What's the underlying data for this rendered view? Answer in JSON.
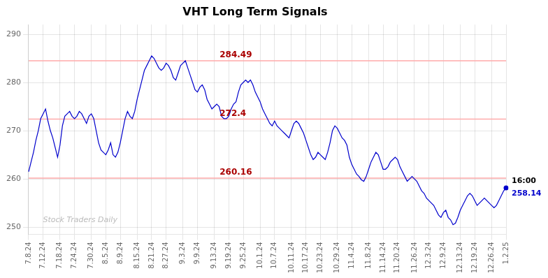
{
  "chart_data": {
    "type": "line",
    "title": "VHT Long Term Signals",
    "categories": [
      "7.8.24",
      null,
      null,
      null,
      null,
      null,
      "7.12.24",
      null,
      null,
      null,
      null,
      null,
      null,
      "7.18.24",
      null,
      null,
      null,
      null,
      null,
      "7.24.24",
      null,
      null,
      null,
      null,
      null,
      null,
      "7.30.24",
      null,
      null,
      null,
      null,
      null,
      "8.5.24",
      null,
      null,
      null,
      null,
      null,
      "8.9.24",
      null,
      null,
      null,
      null,
      null,
      null,
      "8.15.24",
      null,
      null,
      null,
      null,
      null,
      "8.21.24",
      null,
      null,
      null,
      null,
      null,
      "8.27.24",
      null,
      null,
      null,
      null,
      null,
      null,
      "9.3.24",
      null,
      null,
      null,
      null,
      null,
      "9.9.24",
      null,
      null,
      null,
      null,
      null,
      null,
      "9.13.24",
      null,
      null,
      null,
      null,
      null,
      "9.19.24",
      null,
      null,
      null,
      null,
      null,
      "9.25.24",
      null,
      null,
      null,
      null,
      null,
      null,
      "10.1.24",
      null,
      null,
      null,
      null,
      null,
      "10.7.24",
      null,
      null,
      null,
      null,
      null,
      null,
      "10.11.24",
      null,
      null,
      null,
      null,
      null,
      "10.17.24",
      null,
      null,
      null,
      null,
      null,
      "10.23.24",
      null,
      null,
      null,
      null,
      null,
      null,
      "10.29.24",
      null,
      null,
      null,
      null,
      null,
      "11.4.24",
      null,
      null,
      null,
      null,
      null,
      null,
      "11.8.24",
      null,
      null,
      null,
      null,
      null,
      "11.14.24",
      null,
      null,
      null,
      null,
      null,
      "11.20.24",
      null,
      null,
      null,
      null,
      null,
      null,
      "11.26.24",
      null,
      null,
      null,
      null,
      null,
      "12.3.24",
      null,
      null,
      null,
      null,
      null,
      "12.9.24",
      null,
      null,
      null,
      null,
      null,
      null,
      "12.13.24",
      null,
      null,
      null,
      null,
      null,
      "12.19.24",
      null,
      null,
      null,
      null,
      null,
      null,
      "12.26.24",
      null,
      null,
      null,
      null,
      null,
      "1.2.25"
    ],
    "values": [
      261.5,
      263.5,
      265.5,
      268.0,
      270.0,
      272.5,
      273.5,
      274.5,
      272.0,
      270.0,
      268.5,
      266.5,
      264.5,
      267.0,
      271.0,
      273.0,
      273.5,
      274.0,
      273.0,
      272.5,
      273.0,
      274.0,
      273.5,
      272.5,
      271.5,
      273.0,
      273.5,
      272.5,
      270.0,
      267.5,
      266.0,
      265.5,
      265.0,
      266.0,
      267.5,
      265.0,
      264.5,
      265.5,
      267.5,
      270.0,
      272.5,
      274.0,
      273.0,
      272.5,
      274.0,
      276.5,
      278.5,
      280.5,
      282.5,
      283.5,
      284.5,
      285.5,
      285.0,
      284.0,
      283.0,
      282.5,
      283.0,
      284.0,
      283.5,
      282.5,
      281.0,
      280.5,
      282.0,
      283.5,
      284.0,
      284.5,
      283.0,
      281.5,
      280.0,
      278.5,
      278.0,
      279.0,
      279.5,
      278.5,
      276.5,
      275.5,
      274.5,
      275.0,
      275.5,
      275.0,
      273.0,
      272.5,
      272.5,
      273.0,
      274.5,
      275.5,
      276.0,
      278.0,
      279.5,
      280.0,
      280.5,
      280.0,
      280.5,
      279.5,
      278.0,
      277.0,
      276.0,
      274.5,
      273.5,
      272.5,
      271.5,
      271.0,
      272.0,
      271.0,
      270.5,
      270.0,
      269.5,
      269.0,
      268.5,
      270.0,
      271.5,
      272.0,
      271.5,
      270.5,
      269.5,
      268.0,
      266.5,
      265.0,
      264.0,
      264.5,
      265.5,
      265.0,
      264.5,
      264.0,
      265.5,
      267.5,
      270.0,
      271.0,
      270.5,
      269.5,
      268.5,
      268.0,
      267.0,
      264.5,
      263.0,
      262.0,
      261.0,
      260.5,
      259.8,
      259.5,
      260.5,
      262.0,
      263.5,
      264.5,
      265.5,
      265.0,
      263.5,
      262.0,
      262.0,
      262.5,
      263.5,
      264.0,
      264.5,
      264.0,
      262.5,
      261.5,
      260.5,
      259.5,
      260.0,
      260.5,
      260.0,
      259.5,
      258.5,
      257.5,
      257.0,
      256.0,
      255.5,
      255.0,
      254.5,
      253.5,
      252.5,
      252.0,
      253.0,
      253.5,
      252.0,
      251.5,
      250.5,
      250.8,
      252.0,
      253.5,
      254.5,
      255.5,
      256.5,
      257.0,
      256.5,
      255.5,
      254.5,
      255.0,
      255.5,
      256.0,
      255.5,
      255.0,
      254.5,
      254.0,
      254.5,
      255.5,
      256.5,
      257.5,
      258.14
    ],
    "color": "#0000cc",
    "ylim": [
      248.5,
      292
    ],
    "yticks": [
      250,
      260,
      270,
      280,
      290
    ],
    "grid": true,
    "hlines": [
      {
        "y": 284.49,
        "color": "#ffaaaa"
      },
      {
        "y": 272.4,
        "color": "#ffaaaa"
      },
      {
        "y": 260.16,
        "color": "#ffaaaa"
      }
    ],
    "annotations": [
      {
        "text": "284.49",
        "y": 284.49,
        "color": "#aa0000"
      },
      {
        "text": "272.4",
        "y": 272.4,
        "color": "#aa0000"
      },
      {
        "text": "260.16",
        "y": 260.16,
        "color": "#aa0000"
      },
      {
        "text": "16:00",
        "x": "1.2.25",
        "y": 258.14
      },
      {
        "text": "258.14",
        "x": "1.2.25",
        "y": 258.14,
        "color": "#0000cc"
      },
      {
        "text": "Stock Traders Daily",
        "color": "#bbbbbb"
      }
    ]
  }
}
